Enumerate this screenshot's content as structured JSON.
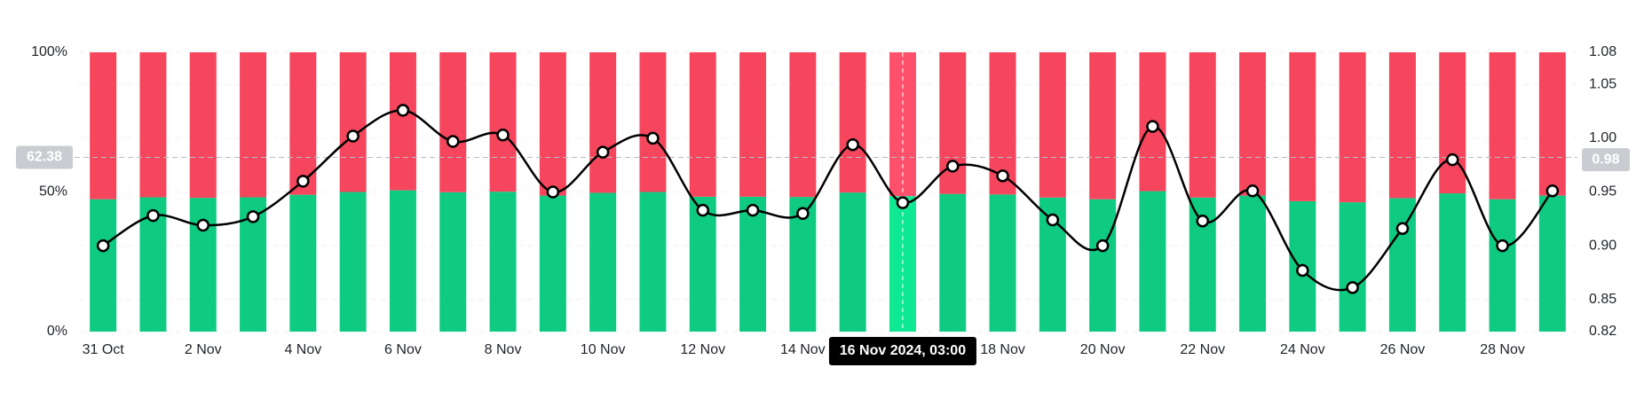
{
  "chart_data": {
    "type": "bar",
    "stacked": true,
    "categories": [
      "31 Oct",
      null,
      "2 Nov",
      null,
      "4 Nov",
      null,
      "6 Nov",
      null,
      "8 Nov",
      null,
      "10 Nov",
      null,
      "12 Nov",
      null,
      "14 Nov",
      null,
      null,
      null,
      "18 Nov",
      null,
      "20 Nov",
      null,
      "22 Nov",
      null,
      "24 Nov",
      null,
      "26 Nov",
      null,
      "28 Nov",
      null
    ],
    "series": [
      {
        "color": "#0ecb81",
        "values": [
          47.4,
          48.1,
          47.9,
          48.1,
          49.0,
          50.0,
          50.6,
          49.9,
          50.1,
          48.7,
          49.7,
          50.0,
          48.3,
          48.3,
          48.2,
          49.8,
          48.5,
          49.3,
          49.1,
          48.0,
          47.4,
          50.3,
          48.0,
          48.7,
          46.7,
          46.3,
          47.8,
          49.5,
          47.4,
          48.7
        ]
      },
      {
        "color": "#f6465d",
        "values": [
          52.6,
          51.9,
          52.1,
          51.9,
          51.0,
          50.0,
          49.4,
          50.1,
          49.9,
          51.3,
          50.3,
          50.0,
          51.7,
          51.7,
          51.8,
          50.2,
          51.5,
          50.7,
          50.9,
          52.0,
          52.6,
          49.7,
          52.0,
          51.3,
          53.3,
          53.7,
          52.2,
          50.5,
          52.6,
          51.3
        ]
      },
      {
        "type": "line",
        "axis": "y2",
        "color": "#000000",
        "values": [
          0.9,
          0.928,
          0.919,
          0.927,
          0.96,
          1.002,
          1.026,
          0.997,
          1.003,
          0.95,
          0.987,
          1.0,
          0.933,
          0.933,
          0.93,
          0.994,
          0.94,
          0.974,
          0.965,
          0.924,
          0.9,
          1.011,
          0.923,
          0.951,
          0.877,
          0.861,
          0.916,
          0.98,
          0.9,
          0.951
        ]
      }
    ],
    "ylim": [
      0,
      100
    ],
    "yticks": [
      {
        "value": 0,
        "label": "0%"
      },
      {
        "value": 50,
        "label": "50%"
      },
      {
        "value": 100,
        "label": "100%"
      }
    ],
    "y2lim": [
      0.82,
      1.08
    ],
    "y2ticks": [
      0.82,
      0.85,
      {
        "value": 0.9,
        "label": "0.90"
      },
      0.95,
      {
        "value": 1,
        "label": "1.00"
      },
      1.05,
      1.08
    ],
    "grid": true,
    "crosshair": {
      "index": 16,
      "y": {
        "value": 62.38,
        "label": "62.38"
      },
      "y2": {
        "value": 0.98,
        "label": "0.98"
      },
      "label": "16 Nov 2024, 03:00"
    }
  }
}
